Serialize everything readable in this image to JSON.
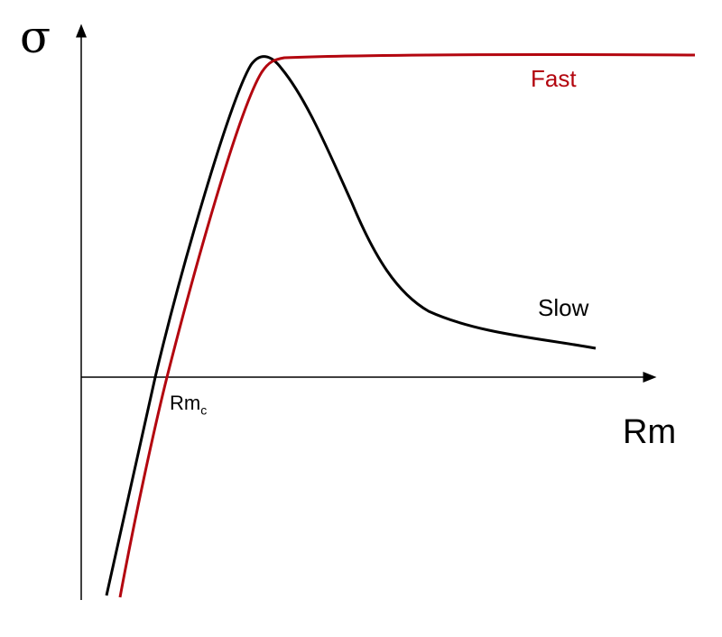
{
  "axes": {
    "y_label": "σ",
    "x_label": "Rm",
    "critical_label": "Rm",
    "critical_subscript": "c"
  },
  "curves": [
    {
      "name": "Fast",
      "color": "#b3060f"
    },
    {
      "name": "Slow",
      "color": "#000000"
    }
  ]
}
